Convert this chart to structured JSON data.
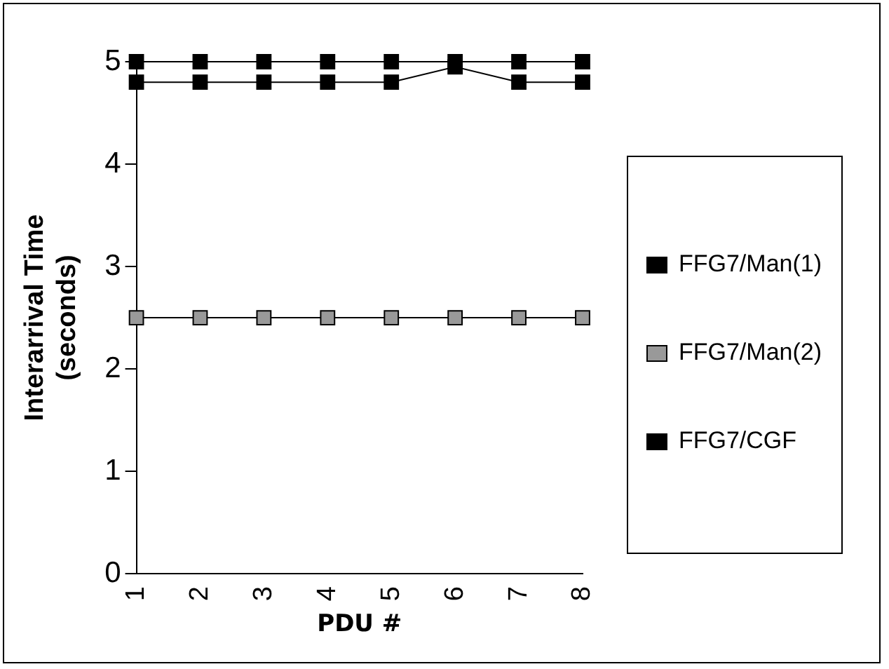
{
  "chart_data": {
    "type": "line",
    "xlabel": "PDU #",
    "ylabel": "Interarrival Time (seconds)",
    "categories": [
      "1",
      "2",
      "3",
      "4",
      "5",
      "6",
      "7",
      "8"
    ],
    "series": [
      {
        "name": "FFG7/Man(1)",
        "color": "#000000",
        "values": [
          5,
          5,
          5,
          5,
          5,
          5,
          5,
          5
        ]
      },
      {
        "name": "FFG7/Man(2)",
        "color": "#999999",
        "values": [
          2.5,
          2.5,
          2.5,
          2.5,
          2.5,
          2.5,
          2.5,
          2.5
        ]
      },
      {
        "name": "FFG7/CGF",
        "color": "#000000",
        "values": [
          4.8,
          4.8,
          4.8,
          4.8,
          4.8,
          4.95,
          4.8,
          4.8
        ]
      }
    ],
    "ylim": [
      0,
      5
    ],
    "yticks": [
      0,
      1,
      2,
      3,
      4,
      5
    ],
    "grid": false,
    "legend": "right",
    "marker": "square",
    "line_style": "solid"
  }
}
